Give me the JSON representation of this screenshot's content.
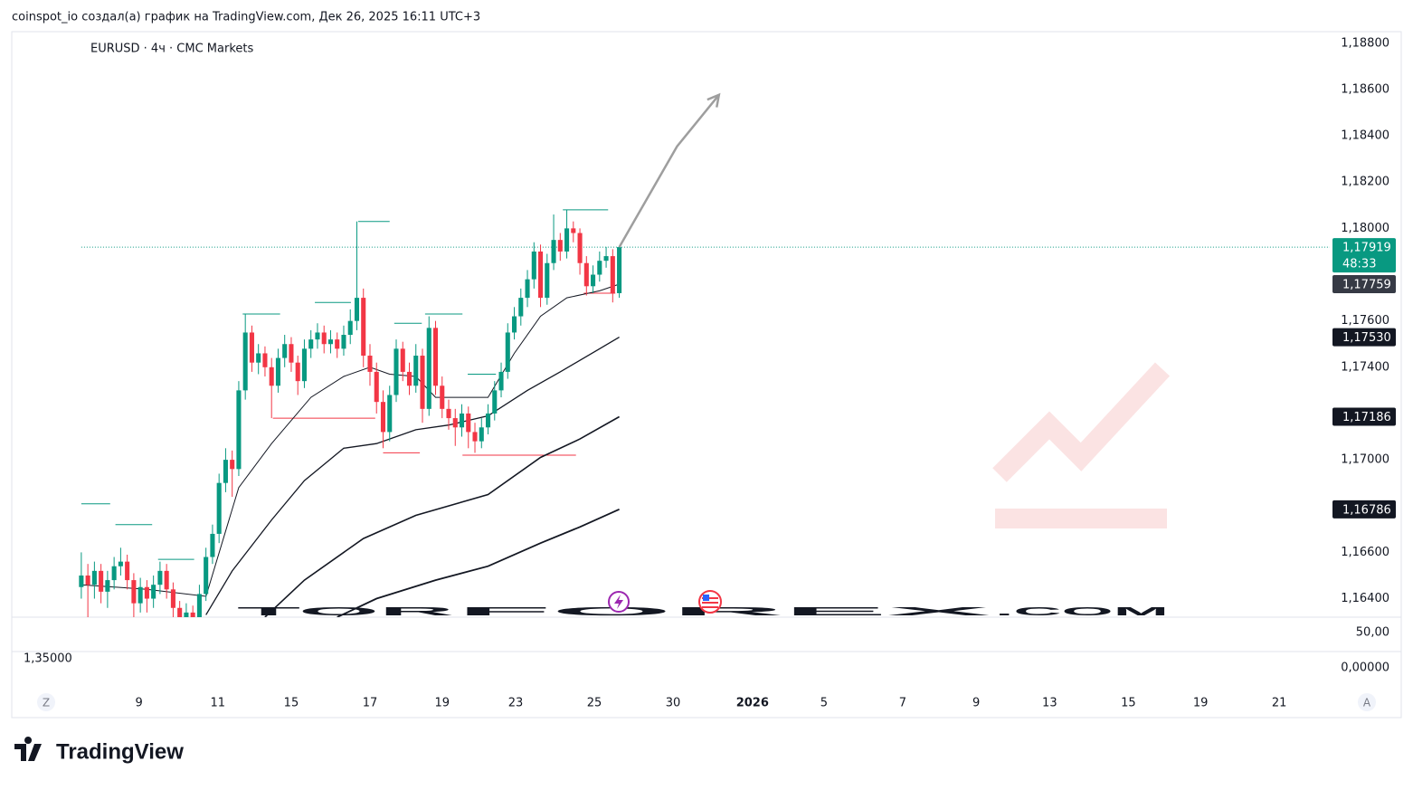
{
  "header": "coinspot_io создал(а) график на TradingView.com, Дек 26, 2025 16:11 UTC+3",
  "symbol": "EURUSD · 4ч · CMC Markets",
  "logo": "TradingView",
  "watermark": {
    "part1": "TOR",
    "part2": "FOREX",
    "part3": ".COM"
  },
  "lower_pane": {
    "right_top": "50,00",
    "right_bottom": "0,00000",
    "left": "1,35000"
  },
  "corner_left": "Z",
  "corner_right": "A",
  "chart_data": {
    "type": "candlestick",
    "up_color": "#089981",
    "down_color": "#f23645",
    "xlim": [
      -10.6,
      190.3
    ],
    "ylim": [
      1.1632,
      1.1885
    ],
    "yticks": [
      {
        "value": 1.188,
        "label": "1,18800"
      },
      {
        "value": 1.186,
        "label": "1,18600"
      },
      {
        "value": 1.184,
        "label": "1,18400"
      },
      {
        "value": 1.182,
        "label": "1,18200"
      },
      {
        "value": 1.18,
        "label": "1,18000"
      },
      {
        "value": 1.176,
        "label": "1,17600"
      },
      {
        "value": 1.174,
        "label": "1,17400"
      },
      {
        "value": 1.17,
        "label": "1,17000"
      },
      {
        "value": 1.166,
        "label": "1,16600"
      },
      {
        "value": 1.164,
        "label": "1,16400"
      }
    ],
    "xticks": [
      {
        "value": 8.8,
        "label": "9"
      },
      {
        "value": 20.8,
        "label": "11"
      },
      {
        "value": 32,
        "label": "15"
      },
      {
        "value": 44,
        "label": "17"
      },
      {
        "value": 55,
        "label": "19"
      },
      {
        "value": 66.2,
        "label": "23"
      },
      {
        "value": 78.2,
        "label": "25"
      },
      {
        "value": 90.2,
        "label": "30"
      },
      {
        "value": 102.3,
        "label": "2026"
      },
      {
        "value": 113.2,
        "label": "5"
      },
      {
        "value": 125.2,
        "label": "7"
      },
      {
        "value": 136.4,
        "label": "9"
      },
      {
        "value": 147.6,
        "label": "13"
      },
      {
        "value": 159.6,
        "label": "15"
      },
      {
        "value": 170.6,
        "label": "19"
      },
      {
        "value": 182.6,
        "label": "21"
      }
    ],
    "candles": [
      [
        1.1645,
        1.166,
        1.164,
        1.165
      ],
      [
        1.165,
        1.1655,
        1.163,
        1.1646
      ],
      [
        1.1646,
        1.1656,
        1.164,
        1.1652
      ],
      [
        1.1652,
        1.1655,
        1.1638,
        1.1643
      ],
      [
        1.1643,
        1.1652,
        1.1636,
        1.1648
      ],
      [
        1.1648,
        1.1658,
        1.1644,
        1.1654
      ],
      [
        1.1654,
        1.1662,
        1.165,
        1.1656
      ],
      [
        1.1656,
        1.1659,
        1.1644,
        1.1648
      ],
      [
        1.1648,
        1.1651,
        1.1632,
        1.1638
      ],
      [
        1.1638,
        1.1649,
        1.1634,
        1.1645
      ],
      [
        1.1645,
        1.1648,
        1.1634,
        1.164
      ],
      [
        1.164,
        1.165,
        1.1636,
        1.1646
      ],
      [
        1.1646,
        1.1656,
        1.1642,
        1.1652
      ],
      [
        1.1652,
        1.1655,
        1.164,
        1.1644
      ],
      [
        1.1644,
        1.1647,
        1.1632,
        1.1636
      ],
      [
        1.1636,
        1.1639,
        1.1626,
        1.163
      ],
      [
        1.163,
        1.1638,
        1.1626,
        1.1634
      ],
      [
        1.1634,
        1.1637,
        1.1626,
        1.163
      ],
      [
        1.163,
        1.1646,
        1.1627,
        1.1642
      ],
      [
        1.1642,
        1.1662,
        1.1639,
        1.1658
      ],
      [
        1.1658,
        1.1672,
        1.1655,
        1.1668
      ],
      [
        1.1668,
        1.1694,
        1.1664,
        1.169
      ],
      [
        1.169,
        1.1705,
        1.1686,
        1.17
      ],
      [
        1.17,
        1.1704,
        1.1684,
        1.1696
      ],
      [
        1.1696,
        1.1734,
        1.1693,
        1.173
      ],
      [
        1.173,
        1.1763,
        1.1726,
        1.1755
      ],
      [
        1.1755,
        1.1758,
        1.1738,
        1.1742
      ],
      [
        1.1742,
        1.175,
        1.1737,
        1.1746
      ],
      [
        1.1746,
        1.1749,
        1.1736,
        1.174
      ],
      [
        1.174,
        1.1744,
        1.1718,
        1.1732
      ],
      [
        1.1732,
        1.1748,
        1.1729,
        1.1744
      ],
      [
        1.1744,
        1.1754,
        1.174,
        1.175
      ],
      [
        1.175,
        1.1753,
        1.1738,
        1.1742
      ],
      [
        1.1742,
        1.1745,
        1.1728,
        1.1734
      ],
      [
        1.1734,
        1.1752,
        1.1731,
        1.1748
      ],
      [
        1.1748,
        1.1756,
        1.1744,
        1.1752
      ],
      [
        1.1752,
        1.1759,
        1.1748,
        1.1755
      ],
      [
        1.1755,
        1.1758,
        1.1746,
        1.175
      ],
      [
        1.175,
        1.1756,
        1.1746,
        1.1752
      ],
      [
        1.1752,
        1.1755,
        1.1744,
        1.1748
      ],
      [
        1.1748,
        1.1758,
        1.1745,
        1.1754
      ],
      [
        1.1754,
        1.1765,
        1.175,
        1.176
      ],
      [
        1.176,
        1.1803,
        1.1756,
        1.177
      ],
      [
        1.177,
        1.1774,
        1.174,
        1.1745
      ],
      [
        1.1745,
        1.175,
        1.1732,
        1.1738
      ],
      [
        1.1738,
        1.1742,
        1.172,
        1.1725
      ],
      [
        1.1725,
        1.173,
        1.1705,
        1.1712
      ],
      [
        1.1712,
        1.1732,
        1.1708,
        1.1728
      ],
      [
        1.1728,
        1.1752,
        1.1725,
        1.1748
      ],
      [
        1.1748,
        1.1751,
        1.1734,
        1.1738
      ],
      [
        1.1738,
        1.1742,
        1.1728,
        1.1732
      ],
      [
        1.1732,
        1.175,
        1.1729,
        1.1745
      ],
      [
        1.1745,
        1.1748,
        1.1716,
        1.1722
      ],
      [
        1.1722,
        1.1762,
        1.1719,
        1.1757
      ],
      [
        1.1757,
        1.176,
        1.1728,
        1.1732
      ],
      [
        1.1732,
        1.1736,
        1.1718,
        1.1722
      ],
      [
        1.1722,
        1.1726,
        1.1713,
        1.1718
      ],
      [
        1.1718,
        1.1722,
        1.1706,
        1.1714
      ],
      [
        1.1714,
        1.1724,
        1.171,
        1.172
      ],
      [
        1.172,
        1.1723,
        1.1705,
        1.1712
      ],
      [
        1.1712,
        1.1716,
        1.1703,
        1.1708
      ],
      [
        1.1708,
        1.1718,
        1.1705,
        1.1714
      ],
      [
        1.1714,
        1.1724,
        1.1711,
        1.172
      ],
      [
        1.172,
        1.1734,
        1.1717,
        1.173
      ],
      [
        1.173,
        1.1742,
        1.1727,
        1.1738
      ],
      [
        1.1738,
        1.1759,
        1.1735,
        1.1755
      ],
      [
        1.1755,
        1.1766,
        1.1752,
        1.1762
      ],
      [
        1.1762,
        1.1774,
        1.1758,
        1.177
      ],
      [
        1.177,
        1.1782,
        1.1766,
        1.1778
      ],
      [
        1.1778,
        1.1794,
        1.1774,
        1.179
      ],
      [
        1.179,
        1.1793,
        1.1766,
        1.177
      ],
      [
        1.177,
        1.1789,
        1.1767,
        1.1785
      ],
      [
        1.1785,
        1.1806,
        1.1782,
        1.1795
      ],
      [
        1.1795,
        1.1798,
        1.1786,
        1.179
      ],
      [
        1.179,
        1.1808,
        1.1787,
        1.18
      ],
      [
        1.18,
        1.1803,
        1.1794,
        1.1798
      ],
      [
        1.1798,
        1.18,
        1.178,
        1.1785
      ],
      [
        1.1785,
        1.1788,
        1.1771,
        1.1775
      ],
      [
        1.1775,
        1.1784,
        1.1772,
        1.178
      ],
      [
        1.178,
        1.179,
        1.1777,
        1.1786
      ],
      [
        1.1786,
        1.1792,
        1.1783,
        1.1788
      ],
      [
        1.1788,
        1.1791,
        1.1768,
        1.1772
      ],
      [
        1.1772,
        1.17919,
        1.177,
        1.17919
      ]
    ],
    "series": [
      {
        "color": "#131722",
        "width": 1,
        "x": [
          0,
          10,
          19,
          24,
          29,
          35,
          40,
          44,
          47,
          51,
          54,
          59,
          62,
          66,
          70,
          74,
          79,
          82
        ],
        "values": [
          1.1646,
          1.1644,
          1.1641,
          1.1688,
          1.1707,
          1.1727,
          1.1736,
          1.174,
          1.1737,
          1.1736,
          1.1727,
          1.1727,
          1.1727,
          1.1746,
          1.1762,
          1.177,
          1.1773,
          1.17759
        ]
      },
      {
        "color": "#131722",
        "width": 1.3,
        "x": [
          19,
          23,
          29,
          34,
          40,
          45,
          51,
          56,
          62,
          68,
          73,
          79,
          82
        ],
        "values": [
          1.1633,
          1.1652,
          1.1674,
          1.1691,
          1.1705,
          1.1707,
          1.1713,
          1.1715,
          1.1719,
          1.173,
          1.1738,
          1.1748,
          1.1753
        ]
      },
      {
        "color": "#131722",
        "width": 1.6,
        "x": [
          28,
          34,
          43,
          51,
          62,
          70,
          76,
          82
        ],
        "values": [
          1.1632,
          1.1648,
          1.1666,
          1.1676,
          1.1685,
          1.1701,
          1.1709,
          1.17186
        ]
      },
      {
        "color": "#131722",
        "width": 1.8,
        "x": [
          39,
          45,
          54,
          62,
          70,
          76,
          82
        ],
        "values": [
          1.1632,
          1.164,
          1.1648,
          1.1654,
          1.1664,
          1.1671,
          1.16786
        ]
      }
    ],
    "levels": [
      {
        "value": 1.1681,
        "x": [
          0,
          4.4
        ],
        "color": "#089981"
      },
      {
        "value": 1.1672,
        "x": [
          5.2,
          10.8
        ],
        "color": "#089981"
      },
      {
        "value": 1.1657,
        "x": [
          11.7,
          17.2
        ],
        "color": "#089981"
      },
      {
        "value": 1.1763,
        "x": [
          24.6,
          30.3
        ],
        "color": "#089981"
      },
      {
        "value": 1.1768,
        "x": [
          35.6,
          41.1
        ],
        "color": "#089981"
      },
      {
        "value": 1.1803,
        "x": [
          42.2,
          47
        ],
        "color": "#089981"
      },
      {
        "value": 1.1759,
        "x": [
          47.7,
          51.9
        ],
        "color": "#089981"
      },
      {
        "value": 1.1763,
        "x": [
          52.4,
          58.1
        ],
        "color": "#089981"
      },
      {
        "value": 1.1737,
        "x": [
          58.9,
          63.2
        ],
        "color": "#089981"
      },
      {
        "value": 1.1808,
        "x": [
          73.4,
          80.3
        ],
        "color": "#089981"
      },
      {
        "value": 1.1718,
        "x": [
          29.2,
          44.8
        ],
        "color": "#f23645"
      },
      {
        "value": 1.1703,
        "x": [
          46,
          51.6
        ],
        "color": "#f23645"
      },
      {
        "value": 1.1702,
        "x": [
          58.1,
          75.4
        ],
        "color": "#f23645"
      },
      {
        "value": 1.1772,
        "x": [
          76.6,
          81.4
        ],
        "color": "#f23645"
      }
    ],
    "last_price": {
      "value": 1.17919,
      "color": "#089981"
    },
    "arrow": {
      "color": "#9e9e9e",
      "x": [
        82,
        90.8,
        97.2
      ],
      "values": [
        1.17919,
        1.18354,
        1.18577
      ]
    },
    "price_labels": [
      {
        "value": 1.17919,
        "label": "1,17919",
        "countdown": "48:33",
        "color": "#089981"
      },
      {
        "value": 1.17759,
        "label": "1,17759",
        "color": "#363a45"
      },
      {
        "value": 1.1753,
        "label": "1,17530",
        "color": "#131722"
      },
      {
        "value": 1.17186,
        "label": "1,17186",
        "color": "#131722"
      },
      {
        "value": 1.16786,
        "label": "1,16786",
        "color": "#131722"
      }
    ]
  }
}
